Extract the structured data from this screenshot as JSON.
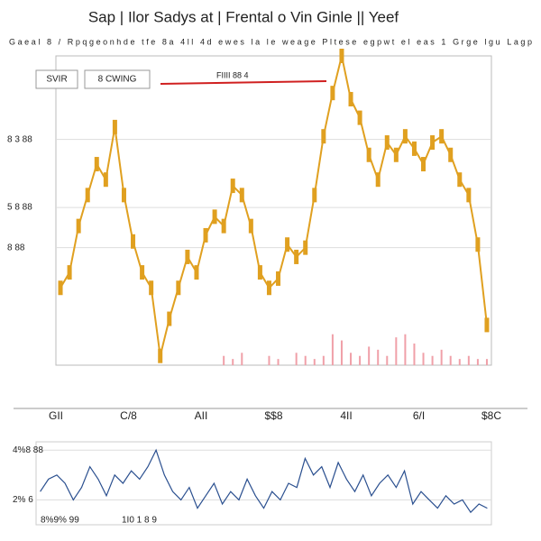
{
  "header": {
    "title": "Sap | Ilor Sadys  at | Frental o Vin Ginle || Yeef",
    "subtitle": "Gaeal 8 / Rpqgeonhde tfe 8a 4ll 4d ewes la le weage Pltese egpwt el eas 1 Grge lgu Lagp",
    "buttons": [
      "SVIR",
      "8 CWING"
    ],
    "annotation": "FIIII 88 4"
  },
  "chart_data": [
    {
      "type": "line",
      "color": "#e0a020",
      "values": [
        25,
        30,
        45,
        55,
        65,
        60,
        77,
        55,
        40,
        30,
        25,
        3,
        15,
        25,
        35,
        30,
        42,
        48,
        45,
        58,
        55,
        45,
        30,
        25,
        28,
        39,
        35,
        38,
        55,
        74,
        88,
        100,
        86,
        80,
        68,
        60,
        72,
        68,
        74,
        70,
        65,
        72,
        74,
        68,
        60,
        55,
        39,
        13
      ],
      "volume": [
        0,
        0,
        0,
        0,
        0,
        0,
        0,
        0,
        0,
        0,
        0,
        0,
        0,
        0,
        0,
        0,
        0,
        0,
        3,
        2,
        4,
        0,
        0,
        3,
        2,
        0,
        4,
        3,
        2,
        3,
        10,
        8,
        4,
        3,
        6,
        5,
        3,
        9,
        10,
        7,
        4,
        3,
        5,
        3,
        2,
        3,
        2,
        2
      ],
      "volume_color": "#f0a0a8",
      "ylim": [
        0,
        100
      ],
      "yticks": [
        {
          "value": 73,
          "label": "8 3 88"
        },
        {
          "value": 51,
          "label": "5 8 88"
        },
        {
          "value": 38,
          "label": "8 88"
        }
      ],
      "xtick_labels": [
        "GII",
        "C/8",
        "AII",
        "$$8",
        "4II",
        "6/I",
        "$8C"
      ],
      "grid": true
    },
    {
      "type": "line",
      "color": "#2a4f8f",
      "values": [
        40,
        55,
        60,
        50,
        30,
        45,
        70,
        55,
        35,
        60,
        50,
        65,
        55,
        70,
        90,
        60,
        40,
        30,
        45,
        20,
        35,
        50,
        25,
        40,
        30,
        55,
        35,
        20,
        40,
        30,
        50,
        45,
        80,
        60,
        70,
        45,
        75,
        55,
        40,
        60,
        35,
        50,
        60,
        45,
        65,
        25,
        40,
        30,
        20,
        35,
        25,
        30,
        15,
        25,
        20
      ],
      "ylim": [
        0,
        100
      ],
      "yticks": [
        {
          "value": 90,
          "label": "4%8 88"
        },
        {
          "value": 30,
          "label": "2% 6"
        }
      ],
      "xtick_labels": [
        "8%9% 99",
        "1I0 1 8 9"
      ],
      "grid": true
    }
  ]
}
